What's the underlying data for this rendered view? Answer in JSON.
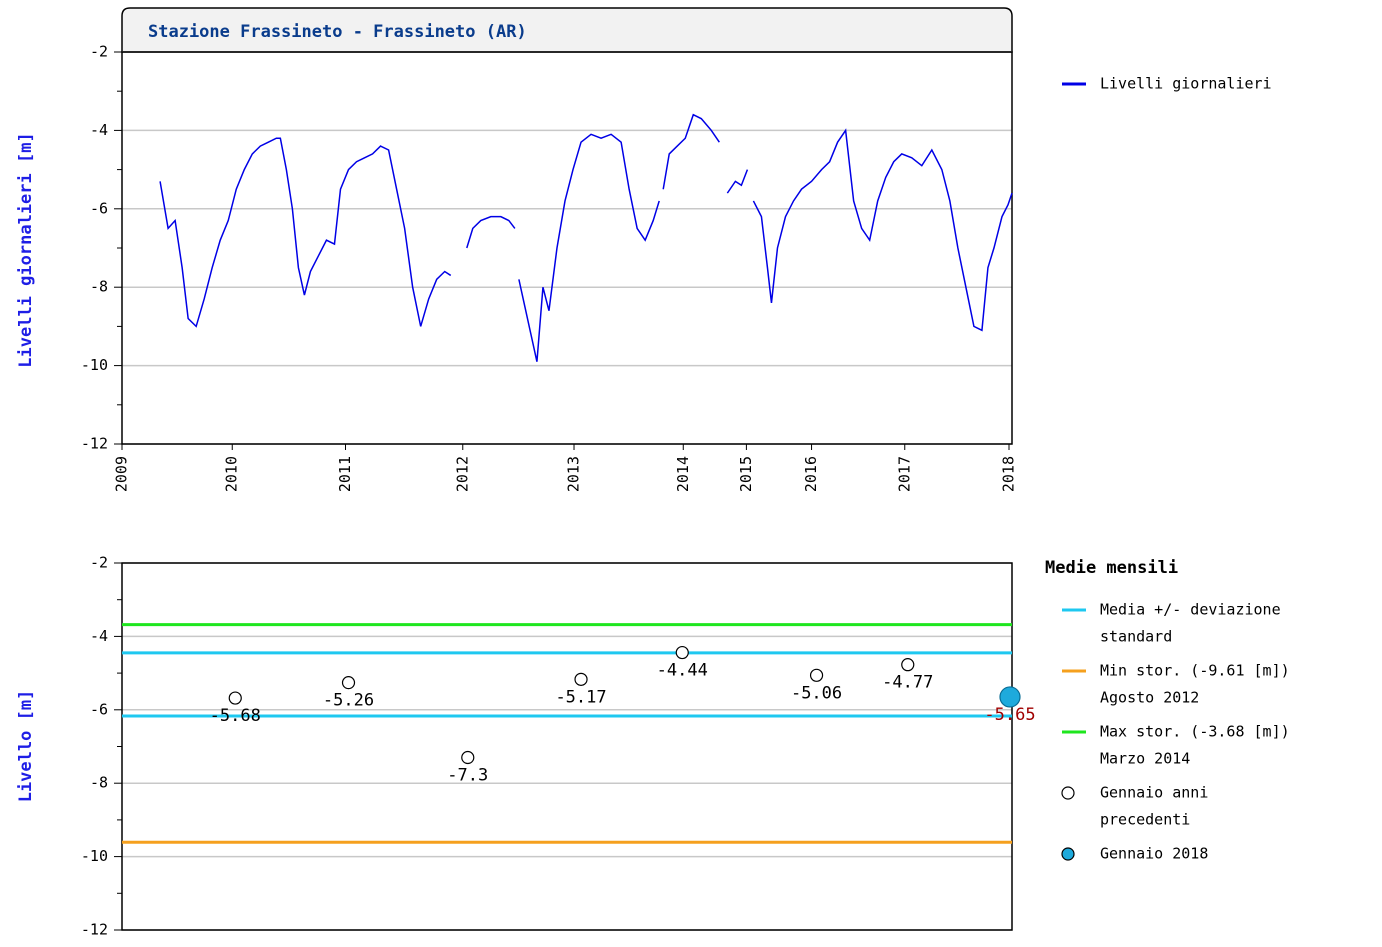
{
  "chart_data": [
    {
      "type": "line",
      "title": "Stazione Frassineto - Frassineto (AR)",
      "ylabel": "Livelli giornalieri [m]",
      "xlim": [
        0,
        888
      ],
      "xticks": [
        {
          "value": 0,
          "label": "2009"
        },
        {
          "value": 110,
          "label": "2010"
        },
        {
          "value": 223,
          "label": "2011"
        },
        {
          "value": 340,
          "label": "2012"
        },
        {
          "value": 451,
          "label": "2013"
        },
        {
          "value": 560,
          "label": "2014"
        },
        {
          "value": 623,
          "label": "2015"
        },
        {
          "value": 688,
          "label": "2016"
        },
        {
          "value": 781,
          "label": "2017"
        },
        {
          "value": 885,
          "label": "2018"
        }
      ],
      "ylim": [
        -12,
        -2
      ],
      "yticks": [
        -12,
        -10,
        -8,
        -6,
        -4,
        -2
      ],
      "yminorticks": [
        -11,
        -9,
        -7,
        -5,
        -3
      ],
      "grid": true,
      "legend": "right",
      "x": [
        38,
        46,
        53,
        60,
        66,
        74,
        82,
        90,
        98,
        106,
        114,
        122,
        130,
        138,
        146,
        154,
        158,
        164,
        170,
        176,
        182,
        188,
        196,
        204,
        212,
        218,
        226,
        234,
        242,
        250,
        258,
        266,
        274,
        282,
        290,
        298,
        306,
        314,
        322,
        328,
        336,
        344,
        350,
        358,
        368,
        378,
        386,
        392,
        394,
        396,
        402,
        408,
        414,
        420,
        426,
        434,
        442,
        450,
        458,
        468,
        478,
        488,
        498,
        506,
        514,
        522,
        530,
        536,
        538,
        540,
        546,
        554,
        562,
        570,
        578,
        588,
        596,
        602,
        604,
        612,
        618,
        624,
        628,
        630,
        638,
        644,
        648,
        654,
        662,
        670,
        678,
        688,
        698,
        706,
        714,
        722,
        730,
        738,
        746,
        754,
        762,
        770,
        778,
        788,
        798,
        808,
        818,
        826,
        834,
        842,
        850,
        858,
        864,
        870,
        878,
        884,
        888
      ],
      "series": [
        {
          "name": "Livelli giornalieri",
          "color": "#0000e6",
          "values": [
            -5.3,
            -6.5,
            -6.3,
            -7.5,
            -8.8,
            -9.0,
            -8.3,
            -7.5,
            -6.8,
            -6.3,
            -5.5,
            -5.0,
            -4.6,
            -4.4,
            -4.3,
            -4.2,
            -4.2,
            -5.0,
            -6.0,
            -7.5,
            -8.2,
            -7.6,
            -7.2,
            -6.8,
            -6.9,
            -5.5,
            -5.0,
            -4.8,
            -4.7,
            -4.6,
            -4.4,
            -4.5,
            -5.5,
            -6.5,
            -8.0,
            -9.0,
            -8.3,
            -7.8,
            -7.6,
            -7.7,
            null,
            -7.0,
            -6.5,
            -6.3,
            -6.2,
            -6.2,
            -6.3,
            -6.5,
            null,
            -7.8,
            -8.5,
            -9.2,
            -9.9,
            -8.0,
            -8.6,
            -7.0,
            -5.8,
            -5.0,
            -4.3,
            -4.1,
            -4.2,
            -4.1,
            -4.3,
            -5.5,
            -6.5,
            -6.8,
            -6.3,
            -5.8,
            null,
            -5.5,
            -4.6,
            -4.4,
            -4.2,
            -3.6,
            -3.7,
            -4.0,
            -4.3,
            null,
            -5.6,
            -5.3,
            -5.4,
            -5.0,
            null,
            -5.8,
            -6.2,
            -7.5,
            -8.4,
            -7.0,
            -6.2,
            -5.8,
            -5.5,
            -5.3,
            -5.0,
            -4.8,
            -4.3,
            -4.0,
            -5.8,
            -6.5,
            -6.8,
            -5.8,
            -5.2,
            -4.8,
            -4.6,
            -4.7,
            -4.9,
            -4.5,
            -5.0,
            -5.8,
            -7.0,
            -8.0,
            -9.0,
            -9.1,
            -7.5,
            -7.0,
            -6.2,
            -5.9,
            -5.6
          ]
        }
      ]
    },
    {
      "type": "scatter",
      "ylabel": "Livello [m]",
      "legend_title": "Medie mensili",
      "xlim": [
        0,
        888
      ],
      "ylim": [
        -12,
        -2
      ],
      "yticks": [
        -12,
        -10,
        -8,
        -6,
        -4,
        -2
      ],
      "yminorticks": [
        -11,
        -9,
        -7,
        -5,
        -3
      ],
      "grid": true,
      "lines": [
        {
          "name": [
            "Media +/- deviazione",
            "standard"
          ],
          "color": "#1ec8f0",
          "values": [
            -4.45,
            -6.17
          ]
        },
        {
          "name": [
            "Min stor. (-9.61 [m])",
            "Agosto 2012"
          ],
          "color": "#f5a01e",
          "values": [
            -9.61
          ]
        },
        {
          "name": [
            "Max stor. (-3.68 [m])",
            "Marzo 2014"
          ],
          "color": "#1ee61e",
          "values": [
            -3.68
          ]
        }
      ],
      "series": [
        {
          "name": [
            "Gennaio anni",
            "precedenti"
          ],
          "color": "#ffffff",
          "label_color": "#000000",
          "x": [
            113,
            226,
            345,
            458,
            559,
            693,
            784
          ],
          "values": [
            -5.68,
            -5.26,
            -7.3,
            -5.17,
            -4.44,
            -5.06,
            -4.77
          ]
        },
        {
          "name": [
            "Gennaio 2018"
          ],
          "color": "#1eaadc",
          "label_color": "#a00000",
          "x": [
            886
          ],
          "values": [
            -5.65
          ]
        }
      ]
    }
  ]
}
